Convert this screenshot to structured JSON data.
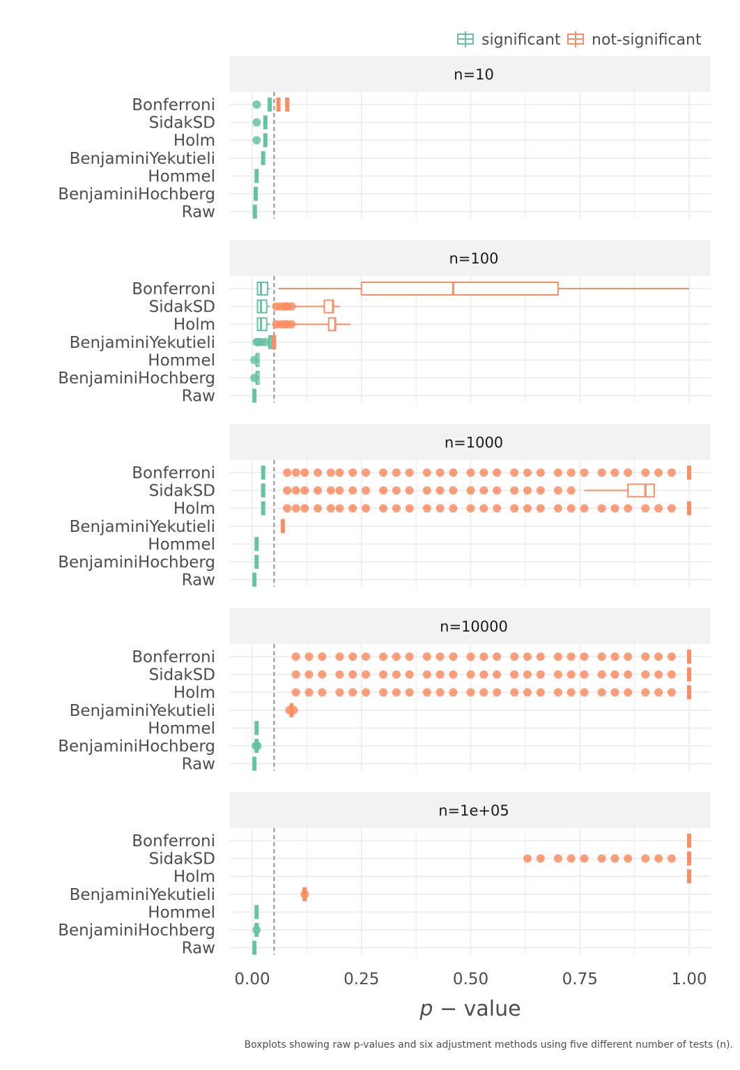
{
  "chart_data": {
    "type": "boxplot",
    "caption": "Boxplots showing raw p-values and six adjustment methods using five different number of tests (n).",
    "x_axis": {
      "title_italic": "p",
      "title_rest": " − value",
      "range": [
        0,
        1
      ],
      "ticks": [
        0.0,
        0.25,
        0.5,
        0.75,
        1.0
      ],
      "tick_labels": [
        "0.00",
        "0.25",
        "0.50",
        "0.75",
        "1.00"
      ]
    },
    "threshold": 0.05,
    "methods": [
      "Bonferroni",
      "SidakSD",
      "Holm",
      "BenjaminiYekutieli",
      "Hommel",
      "BenjaminiHochberg",
      "Raw"
    ],
    "legend": {
      "position": "top-right",
      "items": [
        {
          "label": "significant",
          "color": "#66C2A5"
        },
        {
          "label": "not-significant",
          "color": "#FC8D62"
        }
      ]
    },
    "colors": {
      "significant": "#66C2A5",
      "not_significant": "#FC8D62",
      "grid": "#ebebeb",
      "strip": "#f2f2f2",
      "threshold": "#a6a6a6"
    },
    "panels": [
      {
        "label": "n=10",
        "boxes": [
          {
            "method": "Bonferroni",
            "group": "significant",
            "q": [
              0.04,
              0.04,
              0.04,
              0.04,
              0.04
            ],
            "outliers": [
              0.01
            ]
          },
          {
            "method": "Bonferroni",
            "group": "not-significant",
            "q": [
              0.06,
              0.06,
              0.06,
              0.06,
              0.06
            ],
            "outliers": []
          },
          {
            "method": "Bonferroni",
            "group": "not-significant",
            "q": [
              0.075,
              0.077,
              0.08,
              0.083,
              0.085
            ],
            "outliers": []
          },
          {
            "method": "SidakSD",
            "group": "significant",
            "q": [
              0.03,
              0.03,
              0.03,
              0.03,
              0.03
            ],
            "outliers": [
              0.01
            ]
          },
          {
            "method": "Holm",
            "group": "significant",
            "q": [
              0.03,
              0.03,
              0.03,
              0.03,
              0.03
            ],
            "outliers": [
              0.01
            ]
          },
          {
            "method": "BenjaminiYekutieli",
            "group": "significant",
            "q": [
              0.025,
              0.025,
              0.025,
              0.025,
              0.025
            ],
            "outliers": []
          },
          {
            "method": "Hommel",
            "group": "significant",
            "q": [
              0.01,
              0.01,
              0.01,
              0.01,
              0.01
            ],
            "outliers": []
          },
          {
            "method": "BenjaminiHochberg",
            "group": "significant",
            "q": [
              0.008,
              0.008,
              0.008,
              0.008,
              0.008
            ],
            "outliers": []
          },
          {
            "method": "Raw",
            "group": "significant",
            "q": [
              0.006,
              0.006,
              0.006,
              0.006,
              0.006
            ],
            "outliers": []
          }
        ]
      },
      {
        "label": "n=100",
        "boxes": [
          {
            "method": "Bonferroni",
            "group": "significant",
            "q": [
              0.01,
              0.012,
              0.02,
              0.035,
              0.04
            ],
            "outliers": []
          },
          {
            "method": "Bonferroni",
            "group": "not-significant",
            "q": [
              0.06,
              0.25,
              0.46,
              0.7,
              1.0
            ],
            "outliers": []
          },
          {
            "method": "SidakSD",
            "group": "significant",
            "q": [
              0.01,
              0.012,
              0.02,
              0.033,
              0.04
            ],
            "outliers": []
          },
          {
            "method": "SidakSD",
            "group": "not-significant",
            "q": [
              0.09,
              0.165,
              0.185,
              0.185,
              0.2
            ],
            "outliers": [
              0.055,
              0.065,
              0.075,
              0.08,
              0.09
            ]
          },
          {
            "method": "Holm",
            "group": "significant",
            "q": [
              0.01,
              0.012,
              0.02,
              0.033,
              0.04
            ],
            "outliers": []
          },
          {
            "method": "Holm",
            "group": "not-significant",
            "q": [
              0.09,
              0.175,
              0.19,
              0.19,
              0.225
            ],
            "outliers": [
              0.055,
              0.065,
              0.075,
              0.08,
              0.09
            ]
          },
          {
            "method": "BenjaminiYekutieli",
            "group": "significant",
            "q": [
              0.035,
              0.038,
              0.04,
              0.043,
              0.045
            ],
            "outliers": [
              0.01,
              0.015,
              0.02,
              0.03
            ]
          },
          {
            "method": "BenjaminiYekutieli",
            "group": "not-significant",
            "q": [
              0.05,
              0.05,
              0.05,
              0.05,
              0.05
            ],
            "outliers": []
          },
          {
            "method": "Hommel",
            "group": "significant",
            "q": [
              0.009,
              0.009,
              0.01,
              0.011,
              0.011
            ],
            "outliers": [
              0.005
            ]
          },
          {
            "method": "BenjaminiHochberg",
            "group": "significant",
            "q": [
              0.009,
              0.009,
              0.01,
              0.011,
              0.011
            ],
            "outliers": [
              0.005
            ]
          },
          {
            "method": "Raw",
            "group": "significant",
            "q": [
              0.005,
              0.005,
              0.005,
              0.005,
              0.005
            ],
            "outliers": []
          }
        ]
      },
      {
        "label": "n=1000",
        "boxes": [
          {
            "method": "Bonferroni",
            "group": "significant",
            "q": [
              0.025,
              0.025,
              0.025,
              0.025,
              0.025
            ],
            "outliers": []
          },
          {
            "method": "Bonferroni",
            "group": "not-significant",
            "q": [
              1.0,
              1.0,
              1.0,
              1.0,
              1.0
            ],
            "outliers": [
              0.08,
              0.1,
              0.12,
              0.15,
              0.18,
              0.2,
              0.23,
              0.26,
              0.3,
              0.33,
              0.36,
              0.4,
              0.43,
              0.46,
              0.5,
              0.53,
              0.56,
              0.6,
              0.63,
              0.66,
              0.7,
              0.73,
              0.76,
              0.8,
              0.83,
              0.86,
              0.9,
              0.93,
              0.96
            ]
          },
          {
            "method": "SidakSD",
            "group": "significant",
            "q": [
              0.025,
              0.025,
              0.025,
              0.025,
              0.025
            ],
            "outliers": []
          },
          {
            "method": "SidakSD",
            "group": "not-significant",
            "q": [
              0.76,
              0.86,
              0.9,
              0.92,
              0.92
            ],
            "outliers": [
              0.08,
              0.1,
              0.12,
              0.15,
              0.18,
              0.2,
              0.23,
              0.26,
              0.3,
              0.33,
              0.36,
              0.4,
              0.43,
              0.46,
              0.5,
              0.53,
              0.56,
              0.6,
              0.63,
              0.66,
              0.7,
              0.73
            ]
          },
          {
            "method": "Holm",
            "group": "significant",
            "q": [
              0.025,
              0.025,
              0.025,
              0.025,
              0.025
            ],
            "outliers": []
          },
          {
            "method": "Holm",
            "group": "not-significant",
            "q": [
              1.0,
              1.0,
              1.0,
              1.0,
              1.0
            ],
            "outliers": [
              0.08,
              0.1,
              0.12,
              0.15,
              0.18,
              0.2,
              0.23,
              0.26,
              0.3,
              0.33,
              0.36,
              0.4,
              0.43,
              0.46,
              0.5,
              0.53,
              0.56,
              0.6,
              0.63,
              0.66,
              0.7,
              0.73,
              0.76,
              0.8,
              0.83,
              0.86,
              0.9,
              0.93,
              0.96
            ]
          },
          {
            "method": "BenjaminiYekutieli",
            "group": "not-significant",
            "q": [
              0.07,
              0.07,
              0.07,
              0.07,
              0.07
            ],
            "outliers": []
          },
          {
            "method": "Hommel",
            "group": "significant",
            "q": [
              0.01,
              0.01,
              0.01,
              0.01,
              0.01
            ],
            "outliers": []
          },
          {
            "method": "BenjaminiHochberg",
            "group": "significant",
            "q": [
              0.01,
              0.01,
              0.01,
              0.01,
              0.01
            ],
            "outliers": []
          },
          {
            "method": "Raw",
            "group": "significant",
            "q": [
              0.005,
              0.005,
              0.005,
              0.005,
              0.005
            ],
            "outliers": []
          }
        ]
      },
      {
        "label": "n=10000",
        "boxes": [
          {
            "method": "Bonferroni",
            "group": "not-significant",
            "q": [
              1.0,
              1.0,
              1.0,
              1.0,
              1.0
            ],
            "outliers": [
              0.1,
              0.13,
              0.16,
              0.2,
              0.23,
              0.26,
              0.3,
              0.33,
              0.36,
              0.4,
              0.43,
              0.46,
              0.5,
              0.53,
              0.56,
              0.6,
              0.63,
              0.66,
              0.7,
              0.73,
              0.76,
              0.8,
              0.83,
              0.86,
              0.9,
              0.93,
              0.96
            ]
          },
          {
            "method": "SidakSD",
            "group": "not-significant",
            "q": [
              1.0,
              1.0,
              1.0,
              1.0,
              1.0
            ],
            "outliers": [
              0.1,
              0.13,
              0.16,
              0.2,
              0.23,
              0.26,
              0.3,
              0.33,
              0.36,
              0.4,
              0.43,
              0.46,
              0.5,
              0.53,
              0.56,
              0.6,
              0.63,
              0.66,
              0.7,
              0.73,
              0.76,
              0.8,
              0.83,
              0.86,
              0.9,
              0.93,
              0.96
            ]
          },
          {
            "method": "Holm",
            "group": "not-significant",
            "q": [
              1.0,
              1.0,
              1.0,
              1.0,
              1.0
            ],
            "outliers": [
              0.1,
              0.13,
              0.16,
              0.2,
              0.23,
              0.26,
              0.3,
              0.33,
              0.36,
              0.4,
              0.43,
              0.46,
              0.5,
              0.53,
              0.56,
              0.6,
              0.63,
              0.66,
              0.7,
              0.73,
              0.76,
              0.8,
              0.83,
              0.86,
              0.9,
              0.93,
              0.96
            ]
          },
          {
            "method": "BenjaminiYekutieli",
            "group": "not-significant",
            "q": [
              0.09,
              0.09,
              0.09,
              0.09,
              0.09
            ],
            "outliers": [
              0.085,
              0.095
            ]
          },
          {
            "method": "Hommel",
            "group": "significant",
            "q": [
              0.01,
              0.01,
              0.01,
              0.01,
              0.01
            ],
            "outliers": []
          },
          {
            "method": "BenjaminiHochberg",
            "group": "significant",
            "q": [
              0.01,
              0.01,
              0.01,
              0.01,
              0.01
            ],
            "outliers": [
              0.008,
              0.012
            ]
          },
          {
            "method": "Raw",
            "group": "significant",
            "q": [
              0.005,
              0.005,
              0.005,
              0.005,
              0.005
            ],
            "outliers": []
          }
        ]
      },
      {
        "label": "n=1e+05",
        "boxes": [
          {
            "method": "Bonferroni",
            "group": "not-significant",
            "q": [
              1.0,
              1.0,
              1.0,
              1.0,
              1.0
            ],
            "outliers": []
          },
          {
            "method": "SidakSD",
            "group": "not-significant",
            "q": [
              1.0,
              1.0,
              1.0,
              1.0,
              1.0
            ],
            "outliers": [
              0.63,
              0.66,
              0.7,
              0.73,
              0.76,
              0.8,
              0.83,
              0.86,
              0.9,
              0.93,
              0.96
            ]
          },
          {
            "method": "Holm",
            "group": "not-significant",
            "q": [
              1.0,
              1.0,
              1.0,
              1.0,
              1.0
            ],
            "outliers": []
          },
          {
            "method": "BenjaminiYekutieli",
            "group": "not-significant",
            "q": [
              0.12,
              0.12,
              0.12,
              0.12,
              0.12
            ],
            "outliers": [
              0.12
            ]
          },
          {
            "method": "Hommel",
            "group": "significant",
            "q": [
              0.01,
              0.01,
              0.01,
              0.01,
              0.01
            ],
            "outliers": []
          },
          {
            "method": "BenjaminiHochberg",
            "group": "significant",
            "q": [
              0.01,
              0.01,
              0.01,
              0.01,
              0.01
            ],
            "outliers": [
              0.01
            ]
          },
          {
            "method": "Raw",
            "group": "significant",
            "q": [
              0.005,
              0.005,
              0.005,
              0.005,
              0.005
            ],
            "outliers": []
          }
        ]
      }
    ]
  }
}
